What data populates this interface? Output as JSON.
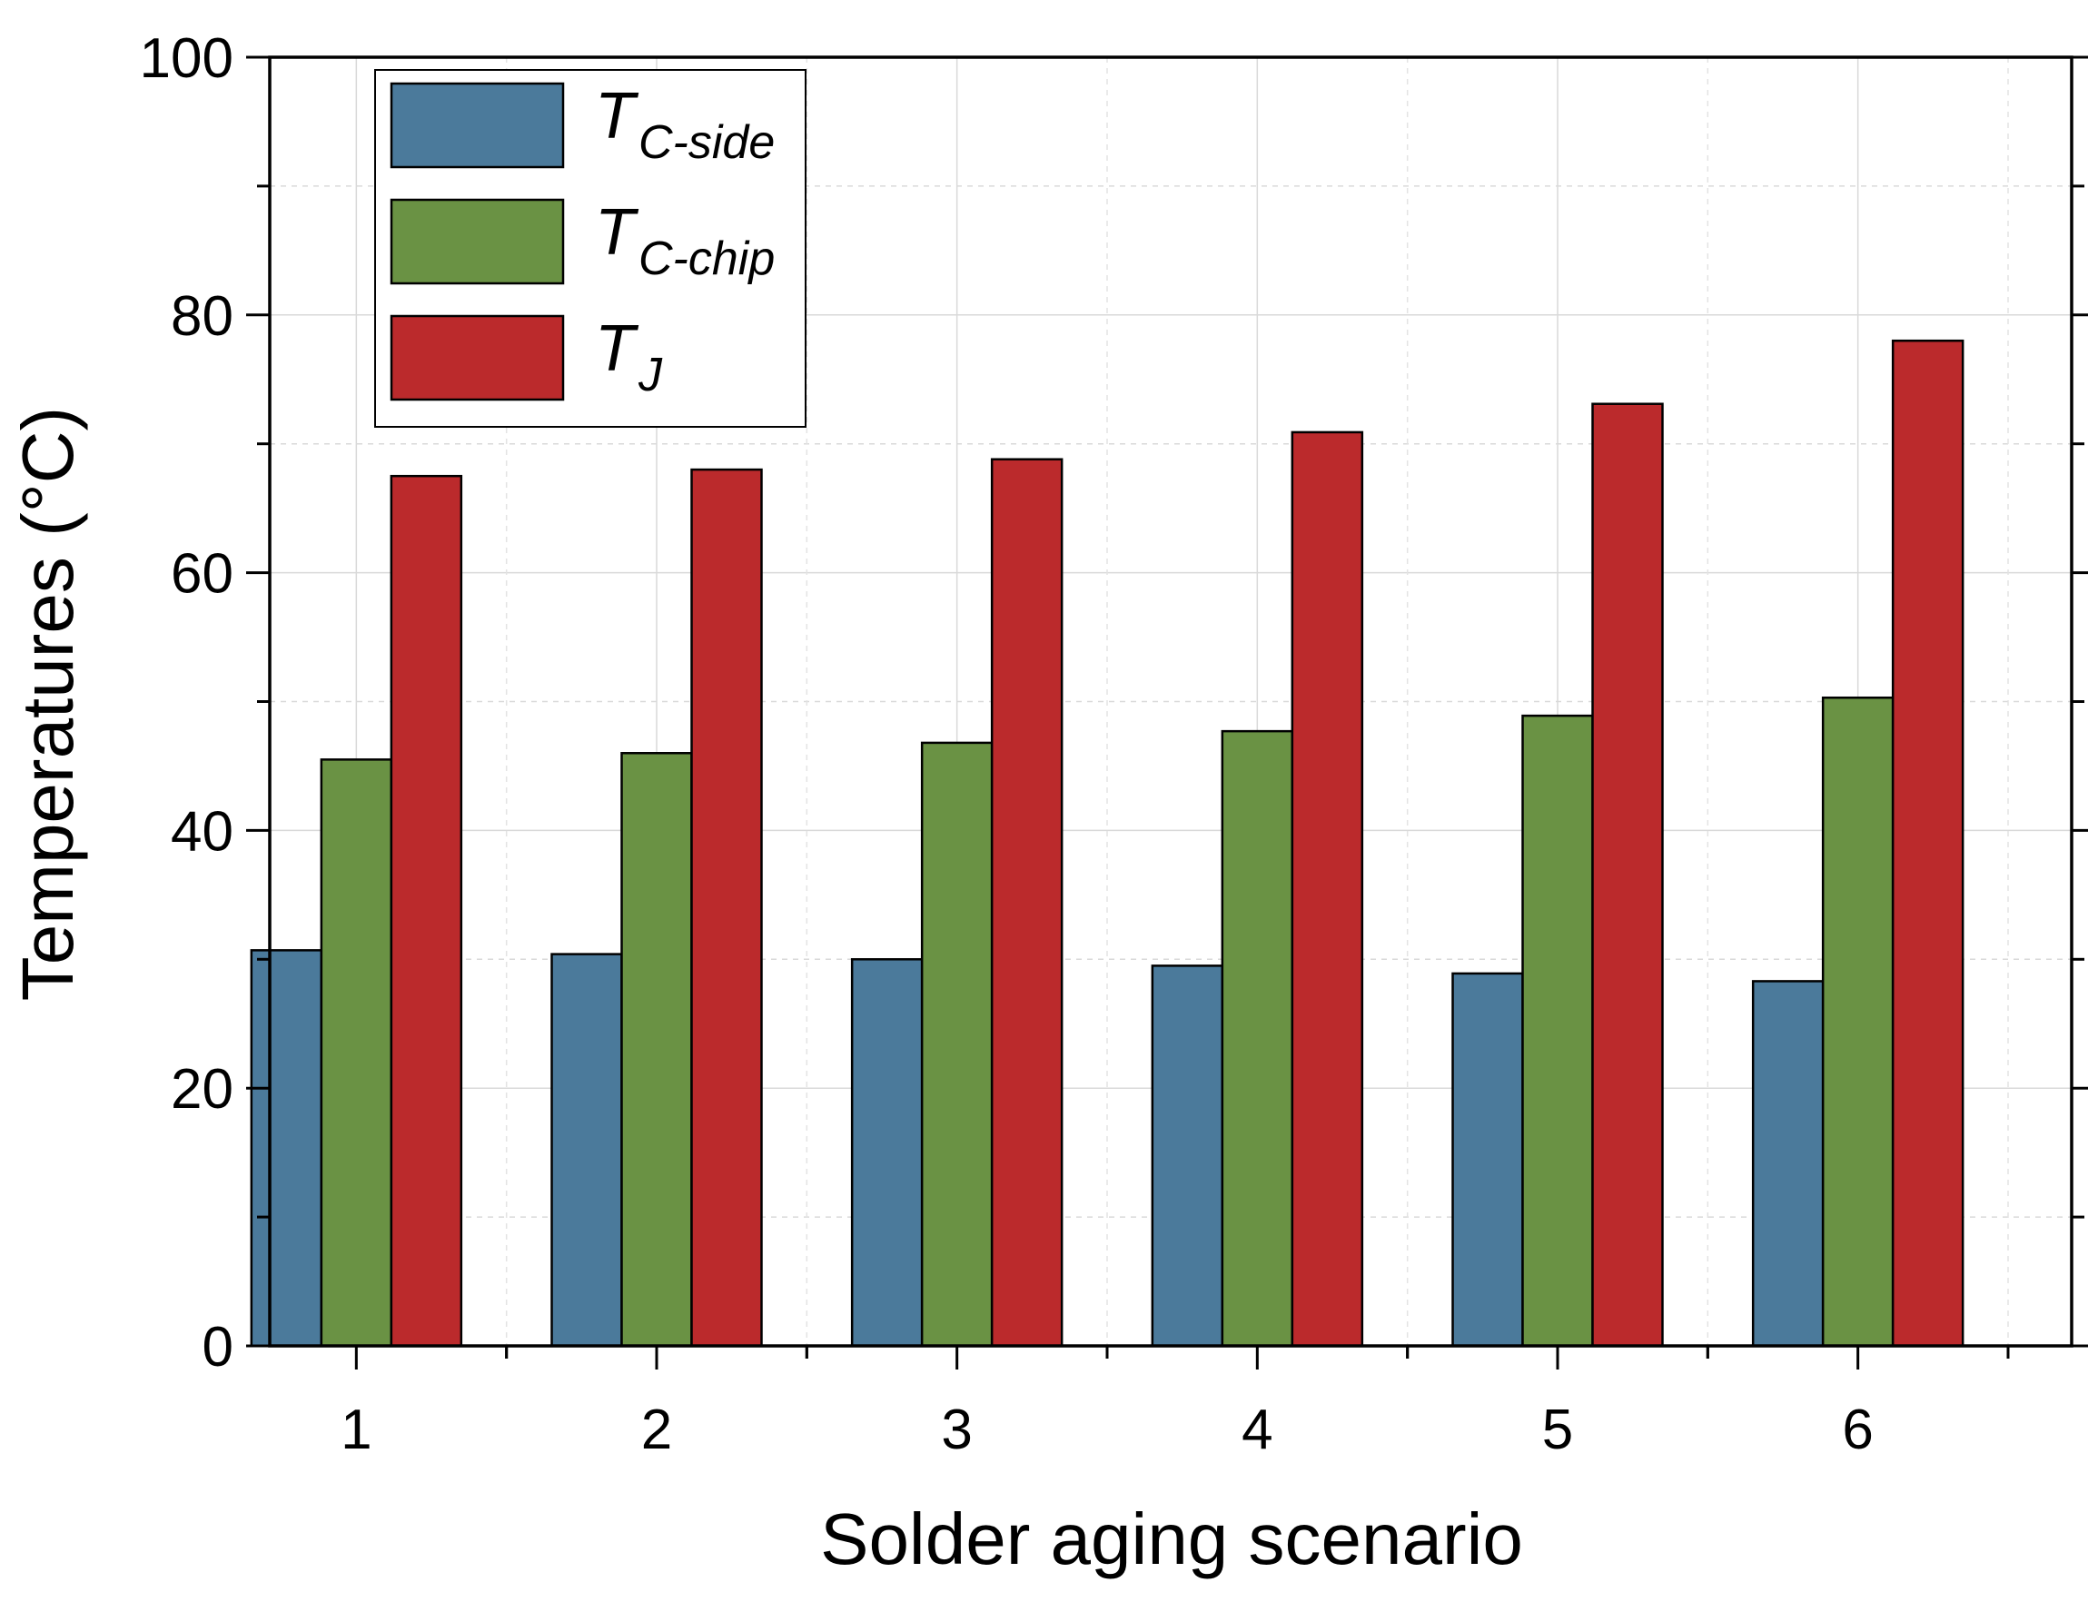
{
  "chart_data": {
    "type": "bar",
    "title": "",
    "xlabel": "Solder aging scenario",
    "ylabel": "Temperatures (°C)",
    "categories": [
      "1",
      "2",
      "3",
      "4",
      "5",
      "6"
    ],
    "ylim": [
      0,
      100
    ],
    "yticks": [
      0,
      20,
      40,
      60,
      80,
      100
    ],
    "grid": true,
    "legend_position": "top-left",
    "series": [
      {
        "name": "T_C-side",
        "label_main": "T",
        "label_sub": "C-side",
        "color": "#4b7a9b",
        "values": [
          30.7,
          30.4,
          30.0,
          29.5,
          28.9,
          28.3
        ]
      },
      {
        "name": "T_C-chip",
        "label_main": "T",
        "label_sub": "C-chip",
        "color": "#6a9244",
        "values": [
          45.5,
          46.0,
          46.8,
          47.7,
          48.9,
          50.3
        ]
      },
      {
        "name": "T_J",
        "label_main": "T",
        "label_sub": "J",
        "color": "#bb2a2c",
        "values": [
          67.5,
          68.0,
          68.8,
          70.9,
          73.1,
          78.0
        ]
      }
    ]
  }
}
